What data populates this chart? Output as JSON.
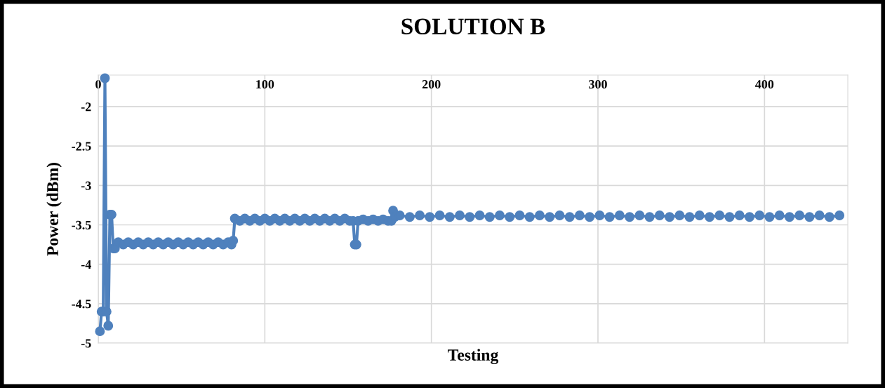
{
  "chart_data": {
    "type": "line",
    "title": "SOLUTION B",
    "xlabel": "Testing",
    "ylabel": "Power (dBm)",
    "xlim": [
      0,
      450
    ],
    "xticks": [
      0,
      100,
      200,
      300,
      400
    ],
    "ylim": [
      -5,
      -1.6
    ],
    "yticks": [
      -2,
      -2.5,
      -3,
      -3.5,
      -4,
      -4.5,
      -5
    ],
    "grid": true,
    "marker": "circle",
    "line_style": "solid",
    "series": [
      {
        "color": "#4f81bd",
        "x": [
          1,
          2,
          3,
          4,
          5,
          6,
          7,
          8,
          9,
          10,
          12,
          15,
          18,
          21,
          24,
          27,
          30,
          33,
          36,
          39,
          42,
          45,
          48,
          51,
          54,
          57,
          60,
          63,
          66,
          69,
          72,
          75,
          78,
          80,
          81,
          82,
          85,
          88,
          91,
          94,
          97,
          100,
          103,
          106,
          109,
          112,
          115,
          118,
          121,
          124,
          127,
          130,
          133,
          136,
          139,
          142,
          145,
          148,
          151,
          153,
          154,
          155,
          156,
          159,
          162,
          165,
          168,
          171,
          174,
          176,
          177,
          178,
          181,
          187,
          193,
          199,
          205,
          211,
          217,
          223,
          229,
          235,
          241,
          247,
          253,
          259,
          265,
          271,
          277,
          283,
          289,
          295,
          301,
          307,
          313,
          319,
          325,
          331,
          337,
          343,
          349,
          355,
          361,
          367,
          373,
          379,
          385,
          391,
          397,
          403,
          409,
          415,
          421,
          427,
          433,
          439,
          445
        ],
        "values": [
          -4.85,
          -4.6,
          -4.6,
          -1.64,
          -4.6,
          -4.78,
          -3.37,
          -3.37,
          -3.8,
          -3.8,
          -3.72,
          -3.75,
          -3.72,
          -3.75,
          -3.72,
          -3.75,
          -3.72,
          -3.75,
          -3.72,
          -3.75,
          -3.72,
          -3.75,
          -3.72,
          -3.75,
          -3.72,
          -3.75,
          -3.72,
          -3.75,
          -3.72,
          -3.75,
          -3.72,
          -3.75,
          -3.72,
          -3.75,
          -3.7,
          -3.42,
          -3.45,
          -3.42,
          -3.45,
          -3.42,
          -3.45,
          -3.42,
          -3.45,
          -3.42,
          -3.45,
          -3.42,
          -3.45,
          -3.42,
          -3.45,
          -3.42,
          -3.45,
          -3.42,
          -3.45,
          -3.42,
          -3.45,
          -3.42,
          -3.45,
          -3.42,
          -3.45,
          -3.45,
          -3.75,
          -3.75,
          -3.45,
          -3.43,
          -3.45,
          -3.43,
          -3.45,
          -3.43,
          -3.45,
          -3.45,
          -3.32,
          -3.4,
          -3.38,
          -3.4,
          -3.38,
          -3.4,
          -3.38,
          -3.4,
          -3.38,
          -3.4,
          -3.38,
          -3.4,
          -3.38,
          -3.4,
          -3.38,
          -3.4,
          -3.38,
          -3.4,
          -3.38,
          -3.4,
          -3.38,
          -3.4,
          -3.38,
          -3.4,
          -3.38,
          -3.4,
          -3.38,
          -3.4,
          -3.38,
          -3.4,
          -3.38,
          -3.4,
          -3.38,
          -3.4,
          -3.38,
          -3.4,
          -3.38,
          -3.4,
          -3.38,
          -3.4,
          -3.38,
          -3.4,
          -3.38,
          -3.4,
          -3.38,
          -3.4,
          -3.38
        ]
      }
    ]
  }
}
